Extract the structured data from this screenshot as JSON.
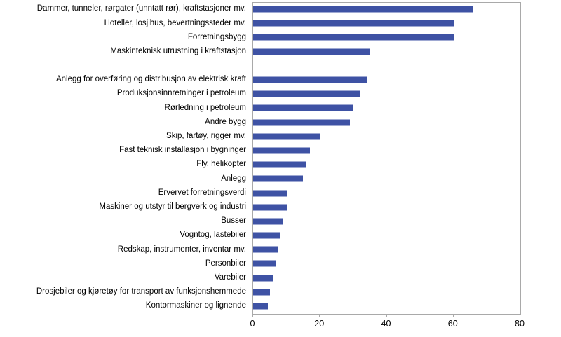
{
  "chart_data": {
    "type": "bar",
    "orientation": "horizontal",
    "title": "",
    "xlabel": "",
    "ylabel": "",
    "xlim": [
      0,
      80
    ],
    "xticks": [
      0,
      20,
      40,
      60,
      80
    ],
    "grid": false,
    "legend": "none",
    "bar_color": "#3e52a4",
    "axis_color": "#a9a9a9",
    "categories": [
      "Dammer, tunneler, rørgater (unntatt rør), kraftstasjoner mv.",
      "Hoteller, losjihus, bevertningssteder mv.",
      "Forretningsbygg",
      "Maskinteknisk utrustning i kraftstasjon",
      "",
      "Anlegg for overføring og distribusjon av elektrisk kraft",
      "Produksjonsinnretninger i petroleum",
      "Rørledning i petroleum",
      "Andre bygg",
      "Skip, fartøy, rigger mv.",
      "Fast teknisk installasjon i bygninger",
      "Fly, helikopter",
      "Anlegg",
      "Ervervet forretningsverdi",
      "Maskiner og utstyr til bergverk og industri",
      "Busser",
      "Vogntog, lastebiler",
      "Redskap, instrumenter, inventar mv.",
      "Personbiler",
      "Varebiler",
      "Drosjebiler og kjøretøy for transport av funksjonshemmede",
      "Kontormaskiner og lignende"
    ],
    "values": [
      66,
      60,
      60,
      35,
      null,
      34,
      32,
      30,
      29,
      20,
      17,
      16,
      15,
      10,
      10,
      9,
      8,
      7.5,
      7,
      6,
      5,
      4.5
    ]
  }
}
